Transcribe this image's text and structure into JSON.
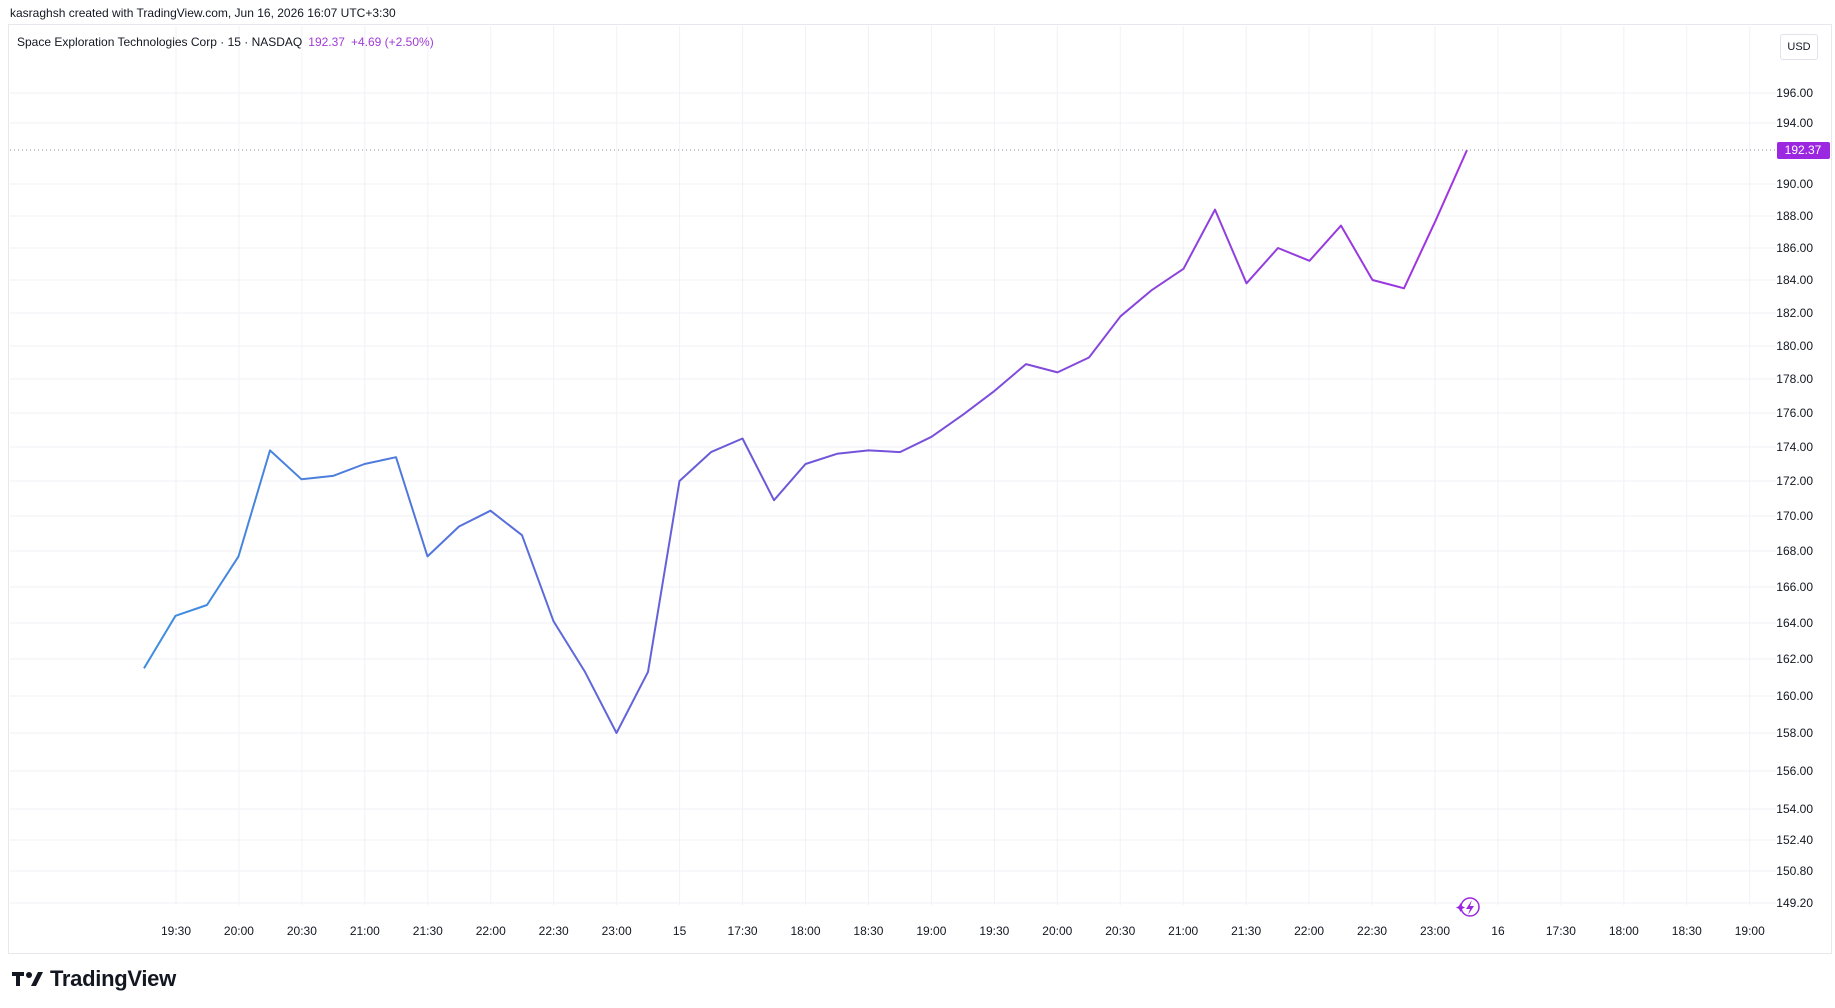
{
  "header": {
    "caption": "kasraghsh created with TradingView.com, Jun 16, 2026 16:07 UTC+3:30"
  },
  "legend": {
    "symbol": "Space Exploration Technologies Corp · 15 · NASDAQ",
    "last_price": "192.37",
    "change": "+4.69 (+2.50%)"
  },
  "currency_button": "USD",
  "brand": {
    "name": "TradingView"
  },
  "colors": {
    "line_start": "#3d8fdf",
    "line_mid": "#6b5ad8",
    "line_end": "#a233e0",
    "price_badge": "#9c27e0"
  },
  "chart_data": {
    "type": "line",
    "y_ticks": [
      "196.00",
      "194.00",
      "192.37",
      "190.00",
      "188.00",
      "186.00",
      "184.00",
      "182.00",
      "180.00",
      "178.00",
      "176.00",
      "174.00",
      "172.00",
      "170.00",
      "168.00",
      "166.00",
      "164.00",
      "162.00",
      "160.00",
      "158.00",
      "156.00",
      "154.00",
      "152.40",
      "150.80",
      "149.20"
    ],
    "x_ticks": [
      "19:30",
      "20:00",
      "20:30",
      "21:00",
      "21:30",
      "22:00",
      "22:30",
      "23:00",
      "15",
      "17:30",
      "18:00",
      "18:30",
      "19:00",
      "19:30",
      "20:00",
      "20:30",
      "21:00",
      "21:30",
      "22:00",
      "22:30",
      "23:00",
      "16",
      "17:30",
      "18:00",
      "18:30",
      "19:00"
    ],
    "series": [
      {
        "values": [
          161.5,
          164.4,
          165.0,
          167.7,
          173.8,
          172.1,
          172.3,
          173.0,
          173.4,
          167.7,
          169.4,
          170.3,
          168.9,
          164.1,
          161.3,
          158.0,
          161.3,
          172.0,
          173.7,
          174.5,
          170.9,
          173.0,
          173.6,
          173.8,
          173.7,
          174.6,
          175.9,
          177.3,
          178.9,
          178.4,
          179.3,
          181.8,
          183.4,
          184.7,
          188.4,
          183.8,
          186.0,
          185.2,
          187.4,
          184.0,
          183.5,
          187.7,
          192.37
        ]
      }
    ],
    "last_value": "192.37",
    "grid": true
  }
}
